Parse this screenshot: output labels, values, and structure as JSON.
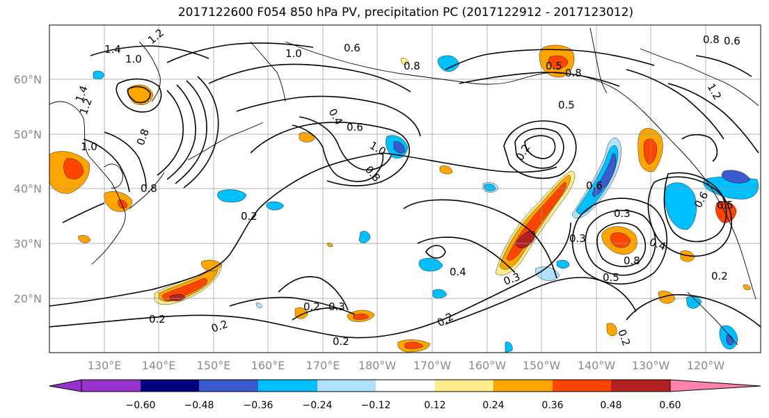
{
  "title": "2017122600 F054 850 hPa PV, precipitation PC (2017122912 - 2017123012)",
  "map": {
    "lat_labels": [
      "60°N",
      "50°N",
      "40°N",
      "30°N",
      "20°N"
    ],
    "lon_labels": [
      "130°E",
      "140°E",
      "150°E",
      "160°E",
      "170°E",
      "180°W",
      "170°W",
      "160°W",
      "150°W",
      "140°W",
      "130°W",
      "120°W"
    ],
    "contour_labels": [
      "1.4",
      "1.0",
      "1.2",
      "0.6",
      "0.8",
      "1.0",
      "0.8",
      "1.2",
      "1.4",
      "1.0",
      "0.8",
      "0.4",
      "0.6",
      "1.0",
      "0.8",
      "0.5",
      "0.5",
      "0.8",
      "0.6",
      "0.3",
      "0.3",
      "0.4",
      "0.5",
      "0.8",
      "0.2",
      "0.2",
      "0.2",
      "0.3",
      "0.2",
      "0.2",
      "0.4",
      "0.3",
      "0.2",
      "0.2",
      "0.2",
      "0.2",
      "0.8",
      "1.2",
      "0.6",
      "0.6",
      "0.5"
    ]
  },
  "colorbar": {
    "ticks": [
      "−0.60",
      "−0.48",
      "−0.36",
      "−0.24",
      "−0.12",
      "0.12",
      "0.24",
      "0.36",
      "0.48",
      "0.60"
    ],
    "colors": [
      "#9932cc",
      "#000080",
      "#3a5bcb",
      "#00bfff",
      "#b0e2ff",
      "#ffffff",
      "#ffec8b",
      "#ffa500",
      "#ff4500",
      "#b22222",
      "#ff82ab"
    ]
  }
}
